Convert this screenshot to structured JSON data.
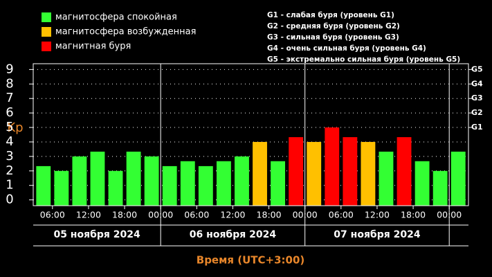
{
  "chart_data": {
    "type": "bar",
    "legend": [
      {
        "name": "магнитосфера спокойная",
        "color": "#33ff33"
      },
      {
        "name": "магнитосфера возбужденная",
        "color": "#ffc000"
      },
      {
        "name": "магнитная буря",
        "color": "#ff0000"
      }
    ],
    "notes": [
      "G1 - слабая буря (уровень G1)",
      "G2 - средняя буря (уровень G2)",
      "G3 - сильная буря (уровень G3)",
      "G4 - очень сильная буря (уровень G4)",
      "G5 - экстремально сильная буря (уровень G5)"
    ],
    "ylabel": "Kp",
    "xlabel": "Время (UTC+3:00)",
    "x": [
      4.5,
      7.5,
      10.5,
      13.5,
      16.5,
      19.5,
      22.5,
      25.5,
      28.5,
      31.5,
      34.5,
      37.5,
      40.5,
      43.5,
      46.5,
      49.5,
      52.5,
      55.5,
      58.5,
      61.5,
      64.5,
      67.5,
      70.5,
      73.5
    ],
    "values": [
      2.33,
      2,
      3,
      3.33,
      2,
      3.33,
      3,
      2.33,
      2.67,
      2.33,
      2.67,
      3,
      4,
      2.67,
      4.33,
      4,
      5,
      4.33,
      4,
      3.33,
      4.33,
      2.67,
      2,
      3.33
    ],
    "colors": [
      "#33ff33",
      "#33ff33",
      "#33ff33",
      "#33ff33",
      "#33ff33",
      "#33ff33",
      "#33ff33",
      "#33ff33",
      "#33ff33",
      "#33ff33",
      "#33ff33",
      "#33ff33",
      "#ffc000",
      "#33ff33",
      "#ff0000",
      "#ffc000",
      "#ff0000",
      "#ff0000",
      "#ffc000",
      "#33ff33",
      "#ff0000",
      "#33ff33",
      "#33ff33",
      "#33ff33"
    ],
    "xlim": [
      2.8,
      75.2
    ],
    "ylim": [
      -0.4,
      9.4
    ],
    "yticks": [
      0,
      1,
      2,
      3,
      4,
      5,
      6,
      7,
      8,
      9
    ],
    "y2ticks": [
      {
        "value": 5,
        "label": "G1"
      },
      {
        "value": 6,
        "label": "G2"
      },
      {
        "value": 7,
        "label": "G3"
      },
      {
        "value": 8,
        "label": "G4"
      },
      {
        "value": 9,
        "label": "G5"
      }
    ],
    "xticks": [
      {
        "value": 6,
        "label": "06:00"
      },
      {
        "value": 12,
        "label": "12:00"
      },
      {
        "value": 18,
        "label": "18:00"
      },
      {
        "value": 24,
        "label": "00:00"
      },
      {
        "value": 30,
        "label": "06:00"
      },
      {
        "value": 36,
        "label": "12:00"
      },
      {
        "value": 42,
        "label": "18:00"
      },
      {
        "value": 48,
        "label": "00:00"
      },
      {
        "value": 54,
        "label": "06:00"
      },
      {
        "value": 60,
        "label": "12:00"
      },
      {
        "value": 66,
        "label": "18:00"
      },
      {
        "value": 72,
        "label": "00:00"
      }
    ],
    "days": [
      "05 ноября 2024",
      "06 ноября 2024",
      "07 ноября 2024"
    ],
    "grid": true
  }
}
